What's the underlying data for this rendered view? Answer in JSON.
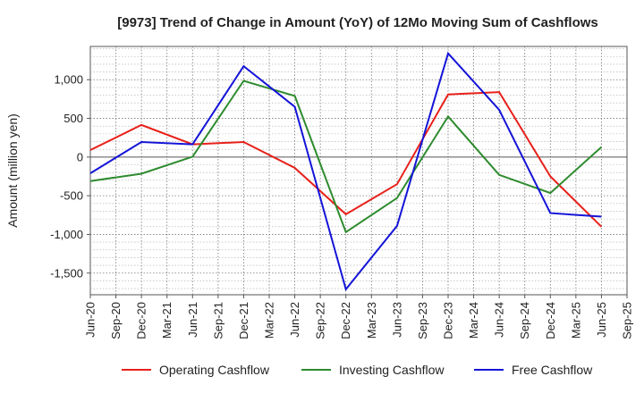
{
  "chart_data": {
    "type": "line",
    "title": "[9973]  Trend of Change in Amount (YoY) of 12Mo Moving Sum of Cashflows",
    "xlabel": "",
    "ylabel": "Amount (million yen)",
    "categories": [
      "Jun-20",
      "Sep-20",
      "Dec-20",
      "Mar-21",
      "Jun-21",
      "Sep-21",
      "Dec-21",
      "Mar-22",
      "Jun-22",
      "Sep-22",
      "Dec-22",
      "Mar-23",
      "Jun-23",
      "Sep-23",
      "Dec-23",
      "Mar-24",
      "Jun-24",
      "Sep-24",
      "Dec-24",
      "Mar-25",
      "Jun-25",
      "Sep-25"
    ],
    "ylim": [
      -1780,
      1430
    ],
    "yticks": [
      1000,
      500,
      0,
      -500,
      -1000,
      -1500
    ],
    "ytick_labels": [
      "1,000",
      "500",
      "0",
      "-500",
      "-1,000",
      "-1,500"
    ],
    "grid": true,
    "legend_position": "bottom",
    "series": [
      {
        "name": "Operating Cashflow",
        "color": "#e8201a",
        "values": [
          90,
          null,
          415,
          null,
          165,
          null,
          195,
          null,
          -140,
          null,
          -740,
          null,
          -350,
          null,
          810,
          null,
          840,
          null,
          -250,
          null,
          -900,
          null
        ]
      },
      {
        "name": "Investing Cashflow",
        "color": "#2e8b2e",
        "values": [
          -310,
          null,
          -215,
          null,
          5,
          null,
          985,
          null,
          790,
          null,
          -970,
          null,
          -530,
          null,
          525,
          null,
          -230,
          null,
          -465,
          null,
          130,
          null
        ]
      },
      {
        "name": "Free Cashflow",
        "color": "#1414d8",
        "values": [
          -210,
          null,
          195,
          null,
          165,
          null,
          1175,
          null,
          650,
          null,
          -1710,
          null,
          -890,
          null,
          1340,
          null,
          610,
          null,
          -725,
          null,
          -770,
          null
        ]
      }
    ]
  }
}
